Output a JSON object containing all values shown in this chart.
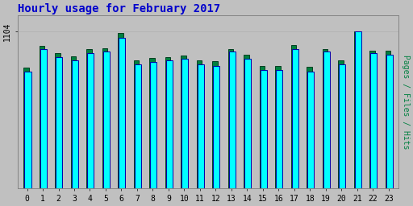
{
  "title": "Hourly usage for February 2017",
  "hours": [
    0,
    1,
    2,
    3,
    4,
    5,
    6,
    7,
    8,
    9,
    10,
    11,
    12,
    13,
    14,
    15,
    16,
    17,
    18,
    19,
    20,
    21,
    22,
    23
  ],
  "pages": [
    820,
    980,
    920,
    900,
    950,
    960,
    1060,
    870,
    890,
    900,
    910,
    870,
    860,
    960,
    910,
    830,
    830,
    980,
    820,
    960,
    870,
    1104,
    950,
    940
  ],
  "hits": [
    850,
    1000,
    950,
    930,
    980,
    985,
    1090,
    900,
    915,
    925,
    935,
    900,
    895,
    980,
    940,
    860,
    860,
    1005,
    855,
    980,
    900,
    1104,
    970,
    965
  ],
  "pages_color": "#00FFFF",
  "pages_edge": "#0000AA",
  "hits_color": "#008040",
  "hits_edge": "#004020",
  "bg_color": "#C0C0C0",
  "plot_bg": "#C0C0C0",
  "title_color": "#0000CC",
  "ylabel_color": "#008040",
  "ylabel": "Pages / Files / Hits",
  "ymax": 1104,
  "ytick_positions": [
    1104
  ],
  "grid_color": "#B0B0B0",
  "ylabel_fontsize": 7,
  "title_fontsize": 10,
  "tick_fontsize": 7
}
